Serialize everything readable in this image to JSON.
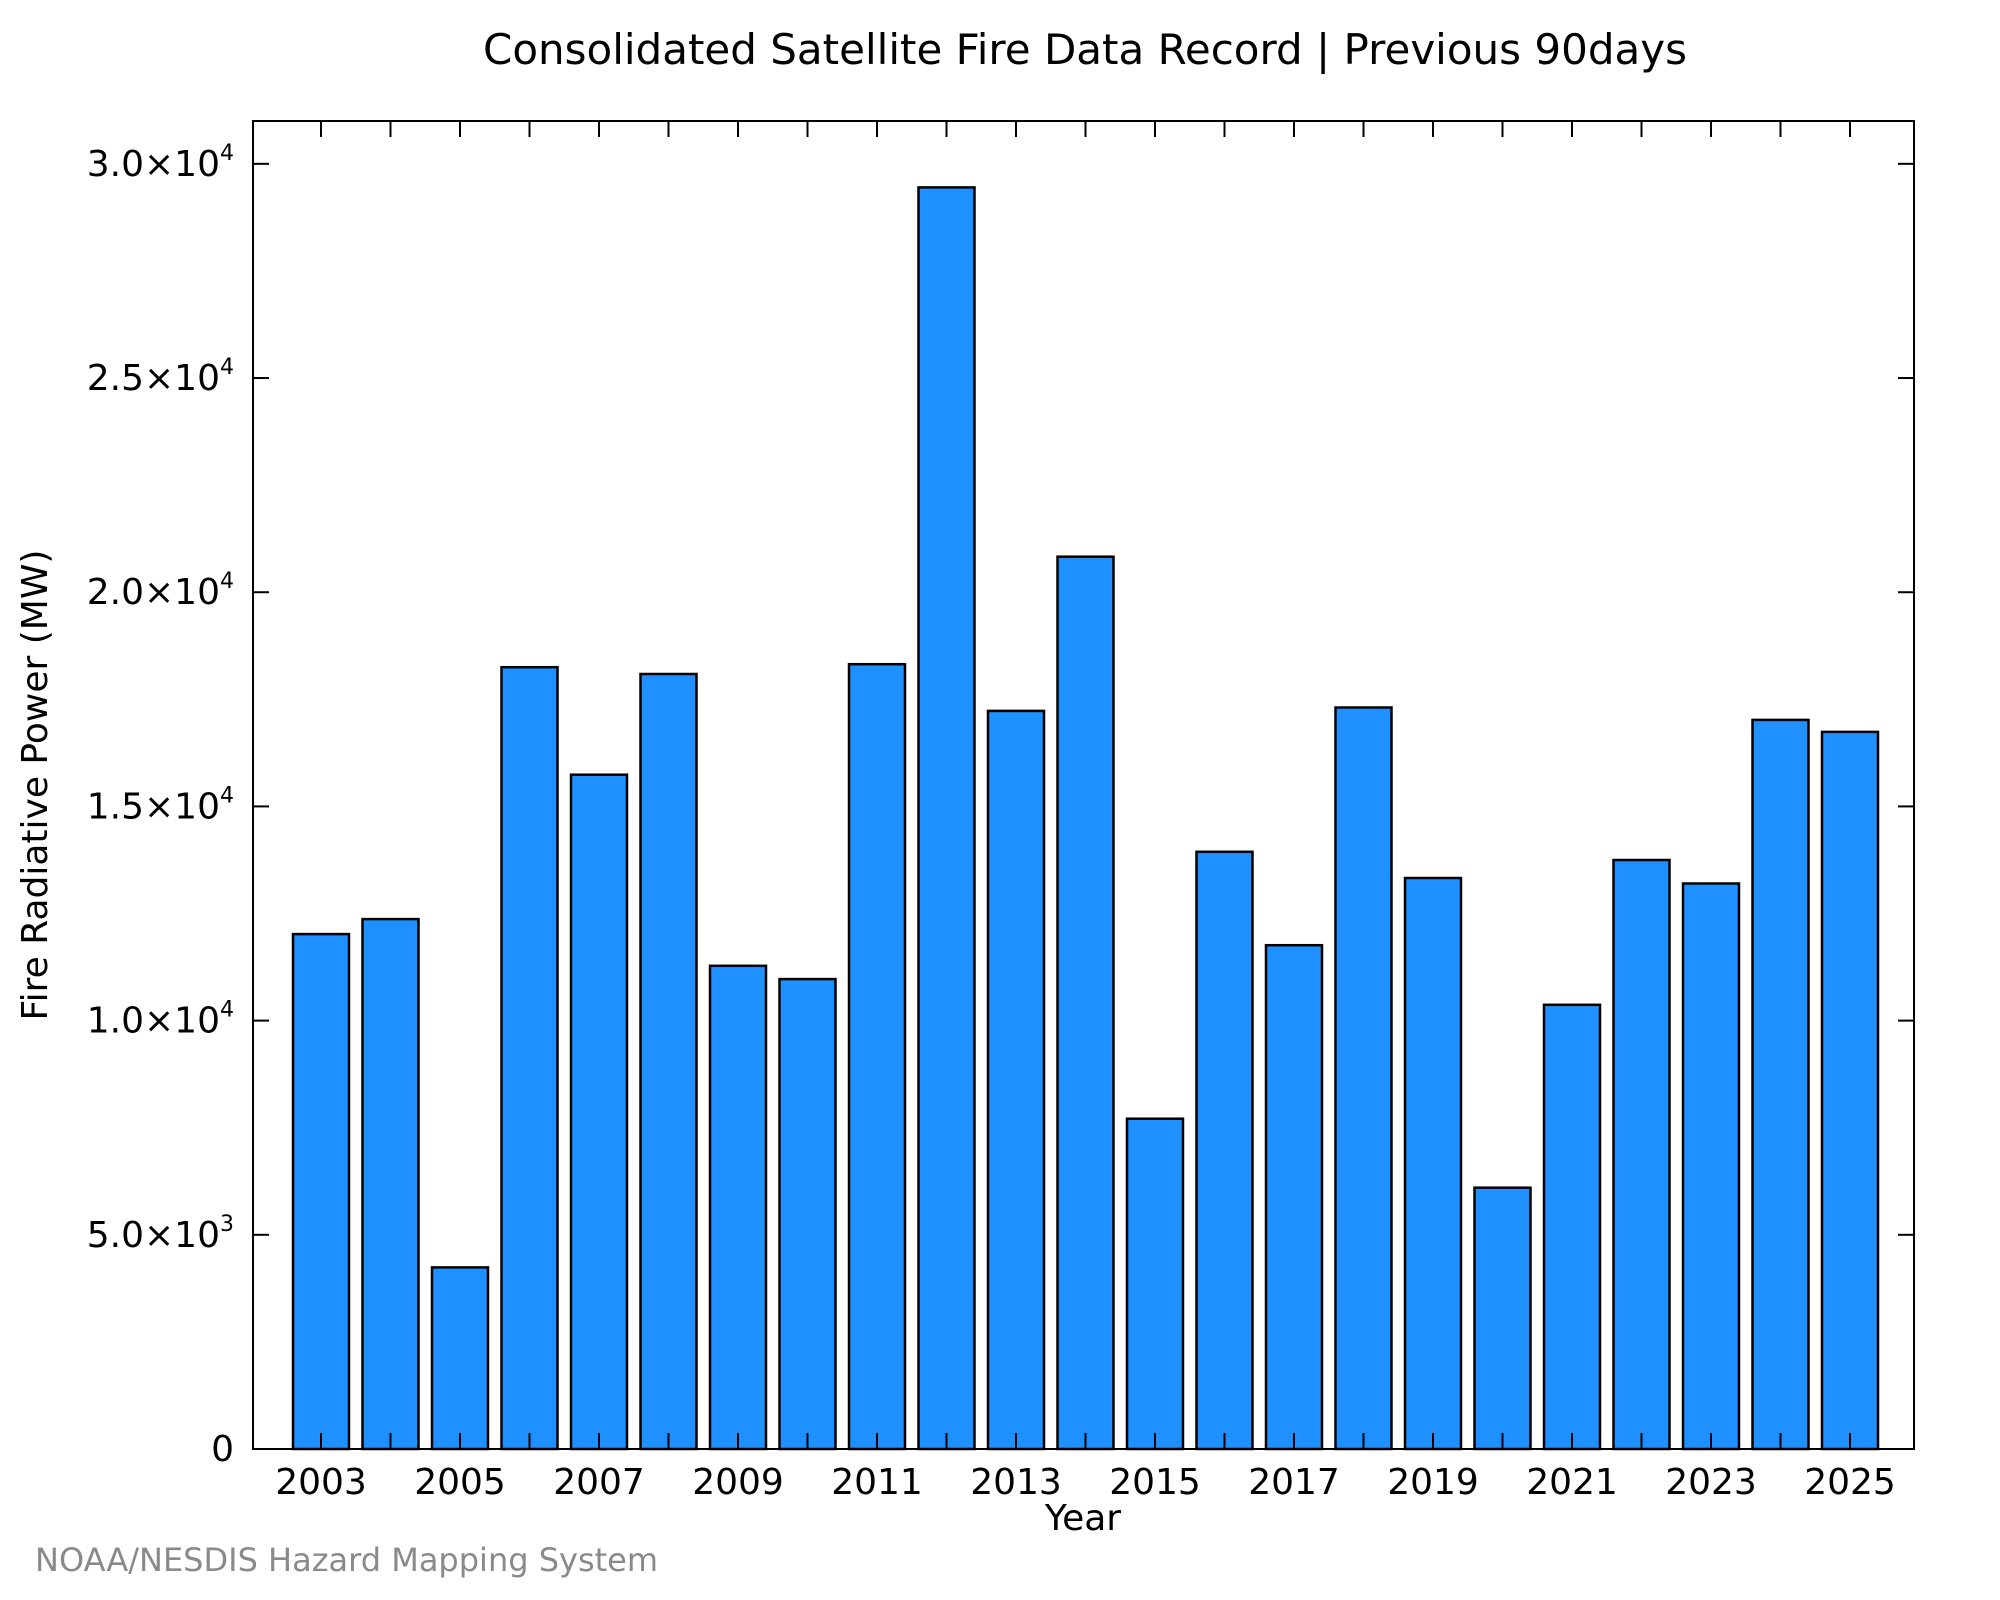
{
  "chart_data": {
    "type": "bar",
    "title": "Consolidated Satellite Fire Data Record | Previous 90days",
    "xlabel": "Year",
    "ylabel": "Fire Radiative Power (MW)",
    "credit": "NOAA/NESDIS Hazard Mapping System",
    "categories": [
      "2003",
      "2004",
      "2005",
      "2006",
      "2007",
      "2008",
      "2009",
      "2010",
      "2011",
      "2012",
      "2013",
      "2014",
      "2015",
      "2016",
      "2017",
      "2018",
      "2019",
      "2020",
      "2021",
      "2022",
      "2023",
      "2024",
      "2025"
    ],
    "values": [
      12020,
      12370,
      4240,
      18250,
      15740,
      18090,
      11280,
      10970,
      18320,
      29450,
      17230,
      20830,
      7710,
      13940,
      11760,
      17310,
      13330,
      6100,
      10370,
      13750,
      13200,
      17020,
      16740
    ],
    "ylim": [
      0,
      31000
    ],
    "yticks": [
      {
        "value": 0,
        "mantissa": "0",
        "exponent": ""
      },
      {
        "value": 5000,
        "mantissa": "5.0×10",
        "exponent": "3"
      },
      {
        "value": 10000,
        "mantissa": "1.0×10",
        "exponent": "4"
      },
      {
        "value": 15000,
        "mantissa": "1.5×10",
        "exponent": "4"
      },
      {
        "value": 20000,
        "mantissa": "2.0×10",
        "exponent": "4"
      },
      {
        "value": 25000,
        "mantissa": "2.5×10",
        "exponent": "4"
      },
      {
        "value": 30000,
        "mantissa": "3.0×10",
        "exponent": "4"
      }
    ],
    "xtick_labels": [
      "2003",
      "2005",
      "2007",
      "2009",
      "2011",
      "2013",
      "2015",
      "2017",
      "2019",
      "2021",
      "2023",
      "2025"
    ],
    "bar_color": "#1e90ff",
    "edge_color": "#000000",
    "grid": false,
    "legend": "none"
  }
}
